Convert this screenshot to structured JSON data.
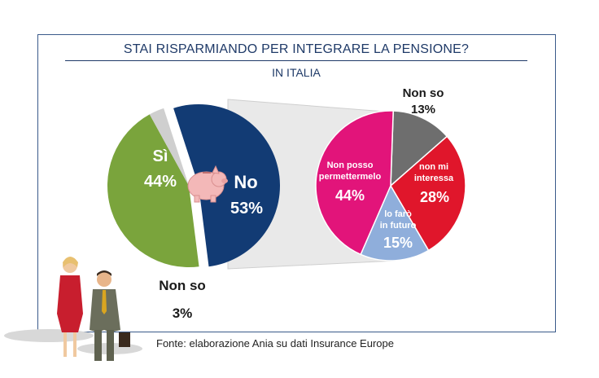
{
  "title": "STAI RISPARMIANDO PER INTEGRARE LA PENSIONE?",
  "subtitle": "IN ITALIA",
  "source": "Fonte: elaborazione  Ania  su dati Insurance Europe",
  "chart_data": [
    {
      "type": "pie",
      "slices": [
        {
          "label": "No",
          "value_text": "53%",
          "value": 53,
          "color": "#123b74"
        },
        {
          "label": "Sì",
          "value_text": "44%",
          "value": 44,
          "color": "#7aa43c"
        },
        {
          "label": "Non so",
          "value_text": "3%",
          "value": 3,
          "color": "#cfcfcf"
        }
      ]
    },
    {
      "type": "pie",
      "slices": [
        {
          "label": "Non so",
          "value_text": "13%",
          "value": 13,
          "color": "#6e6e6e"
        },
        {
          "label": "non mi interessa",
          "value_text": "28%",
          "value": 28,
          "color": "#e0162b"
        },
        {
          "label": "lo farò in futuro",
          "value_text": "15%",
          "value": 15,
          "color": "#8faedb"
        },
        {
          "label": "Non posso permettermelo",
          "value_text": "44%",
          "value": 44,
          "color": "#e2147a"
        }
      ]
    }
  ]
}
